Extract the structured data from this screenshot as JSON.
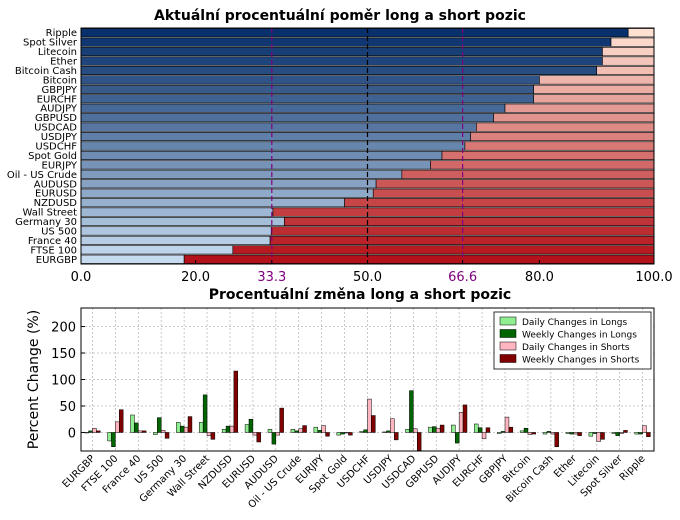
{
  "chart_data": [
    {
      "type": "bar",
      "orientation": "horizontal",
      "stacked": true,
      "title": "Aktuální procentuální poměr long a short pozic",
      "categories": [
        "Ripple",
        "Spot Silver",
        "Litecoin",
        "Ether",
        "Bitcoin Cash",
        "Bitcoin",
        "GBPJPY",
        "EURCHF",
        "AUDJPY",
        "GBPUSD",
        "USDCAD",
        "USDJPY",
        "USDCHF",
        "Spot Gold",
        "EURJPY",
        "Oil - US Crude",
        "AUDUSD",
        "EURUSD",
        "NZDUSD",
        "Wall Street",
        "Germany 30",
        "US 500",
        "France 40",
        "FTSE 100",
        "EURGBP"
      ],
      "series": [
        {
          "values": [
            95.5,
            92.5,
            91,
            91,
            90,
            80,
            79,
            79,
            74,
            72,
            69,
            68,
            67,
            63,
            61,
            56,
            51.5,
            51,
            46,
            33.5,
            35.5,
            33.2,
            33,
            26.5,
            18
          ]
        },
        {
          "values": [
            4.5,
            7.5,
            9,
            9,
            10,
            20,
            21,
            21,
            26,
            28,
            31,
            32,
            33,
            37,
            39,
            44,
            48.5,
            49,
            54,
            66.5,
            64.5,
            66.8,
            67,
            73.5,
            82
          ]
        }
      ],
      "xlim": [
        0,
        100
      ],
      "xticks": [
        "0.0",
        "20.0",
        "33.3",
        "50.0",
        "66.6",
        "80.0",
        "100.0"
      ],
      "reference_lines": [
        {
          "x": 33.3,
          "label": "33.3",
          "color": "#800080",
          "style": "dashed"
        },
        {
          "x": 50.0,
          "label": "50.0",
          "color": "#000000",
          "style": "dashed"
        },
        {
          "x": 66.6,
          "label": "66.6",
          "color": "#800080",
          "style": "dashed"
        }
      ],
      "colors": {
        "long_dark": "#08306b",
        "long_light": "#c6dbef",
        "short_light": "#fde0d2",
        "short_dark": "#b3121a"
      }
    },
    {
      "type": "bar",
      "title": "Procentuální změna long a short pozic",
      "ylabel": "Percent Change (%)",
      "ylim": [
        -35,
        235
      ],
      "yticks": [
        0,
        50,
        100,
        150,
        200
      ],
      "grid": true,
      "legend_position": "top-right",
      "categories": [
        "EURGBP",
        "FTSE 100",
        "France 40",
        "US 500",
        "Germany 30",
        "Wall Street",
        "NZDUSD",
        "EURUSD",
        "AUDUSD",
        "Oil - US Crude",
        "EURJPY",
        "Spot Gold",
        "USDCHF",
        "USDJPY",
        "USDCAD",
        "GBPUSD",
        "AUDJPY",
        "EURCHF",
        "GBPJPY",
        "Bitcoin",
        "Bitcoin Cash",
        "Ether",
        "Litecoin",
        "Spot Silver",
        "Ripple"
      ],
      "series": [
        {
          "name": "Daily Changes in Longs",
          "color": "#90ee90",
          "values": [
            -1,
            -16,
            33,
            -4,
            19,
            19,
            6,
            15,
            6,
            6,
            10,
            -5,
            2,
            1,
            6,
            10,
            14,
            16,
            -2,
            3,
            -3,
            -2,
            -7,
            -2,
            -3
          ]
        },
        {
          "name": "Weekly Changes in Longs",
          "color": "#006400",
          "values": [
            3,
            -27,
            18,
            28,
            12,
            71,
            12,
            25,
            -22,
            3,
            4,
            -3,
            5,
            3,
            79,
            11,
            -20,
            9,
            2,
            8,
            2,
            -3,
            -2,
            -6,
            -3
          ]
        },
        {
          "name": "Daily Changes in Shorts",
          "color": "#ffb6c1",
          "values": [
            8,
            20,
            3,
            4,
            10,
            -6,
            12,
            -5,
            -5,
            7,
            13,
            -1,
            63,
            26,
            7,
            8,
            38,
            -12,
            29,
            -4,
            -3,
            -3,
            -17,
            -2,
            13
          ]
        },
        {
          "name": "Weekly Changes in Shorts",
          "color": "#800000",
          "values": [
            3,
            43,
            3,
            -11,
            30,
            -13,
            116,
            -18,
            46,
            13,
            -7,
            -5,
            32,
            -14,
            -34,
            14,
            52,
            9,
            10,
            -3,
            -27,
            -6,
            -13,
            4,
            -8
          ]
        }
      ]
    }
  ]
}
